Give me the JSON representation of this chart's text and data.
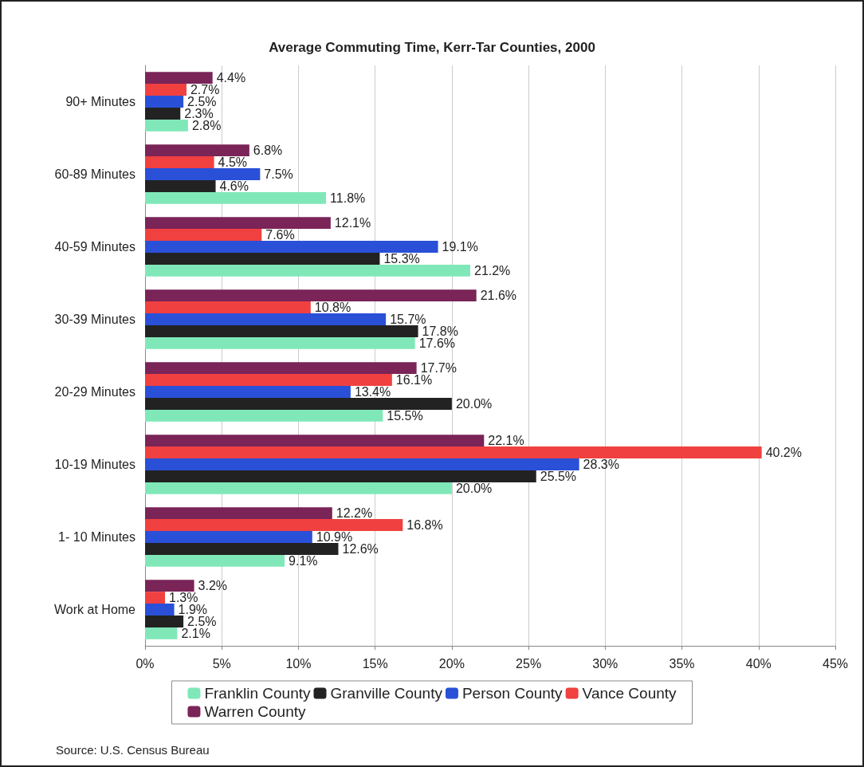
{
  "chart_data": {
    "type": "bar",
    "orientation": "horizontal",
    "title": "Average Commuting Time, Kerr-Tar Counties, 2000",
    "categories": [
      "90+ Minutes",
      "60-89 Minutes",
      "40-59 Minutes",
      "30-39 Minutes",
      "20-29 Minutes",
      "10-19 Minutes",
      "1- 10 Minutes",
      "Work at Home"
    ],
    "series": [
      {
        "name": "Franklin County",
        "color": "#80e8b8",
        "values": [
          2.8,
          11.8,
          21.2,
          17.6,
          15.5,
          20.0,
          9.1,
          2.1
        ],
        "value_labels": [
          "2.8%",
          "11.8%",
          "21.2%",
          "17.6%",
          "15.5%",
          "20.0%",
          "9.1%",
          "2.1%"
        ]
      },
      {
        "name": "Granville County",
        "color": "#222222",
        "values": [
          2.3,
          4.6,
          15.3,
          17.8,
          20.0,
          25.5,
          12.6,
          2.5
        ],
        "value_labels": [
          "2.3%",
          "4.6%",
          "15.3%",
          "17.8%",
          "20.0%",
          "25.5%",
          "12.6%",
          "2.5%"
        ]
      },
      {
        "name": "Person County",
        "color": "#2a50d8",
        "values": [
          2.5,
          7.5,
          19.1,
          15.7,
          13.4,
          28.3,
          10.9,
          1.9
        ],
        "value_labels": [
          "2.5%",
          "7.5%",
          "19.1%",
          "15.7%",
          "13.4%",
          "28.3%",
          "10.9%",
          "1.9%"
        ]
      },
      {
        "name": "Vance County",
        "color": "#f04040",
        "values": [
          2.7,
          4.5,
          7.6,
          10.8,
          16.1,
          40.2,
          16.8,
          1.3
        ],
        "value_labels": [
          "2.7%",
          "4.5%",
          "7.6%",
          "10.8%",
          "16.1%",
          "40.2%",
          "16.8%",
          "1.3%"
        ]
      },
      {
        "name": "Warren County",
        "color": "#7a2458",
        "values": [
          4.4,
          6.8,
          12.1,
          21.6,
          17.7,
          22.1,
          12.2,
          3.2
        ],
        "value_labels": [
          "4.4%",
          "6.8%",
          "12.1%",
          "21.6%",
          "17.7%",
          "22.1%",
          "12.2%",
          "3.2%"
        ]
      }
    ],
    "xlim": [
      0,
      45
    ],
    "xticks": [
      {
        "value": 0,
        "label": "0%"
      },
      {
        "value": 5,
        "label": "5%"
      },
      {
        "value": 10,
        "label": "10%"
      },
      {
        "value": 15,
        "label": "15%"
      },
      {
        "value": 20,
        "label": "20%"
      },
      {
        "value": 25,
        "label": "25%"
      },
      {
        "value": 30,
        "label": "30%"
      },
      {
        "value": 35,
        "label": "35%"
      },
      {
        "value": 40,
        "label": "40%"
      },
      {
        "value": 45,
        "label": "45%"
      }
    ],
    "grid": "x",
    "legend": "bottom",
    "annotations": [
      "Source: U.S. Census Bureau"
    ]
  }
}
